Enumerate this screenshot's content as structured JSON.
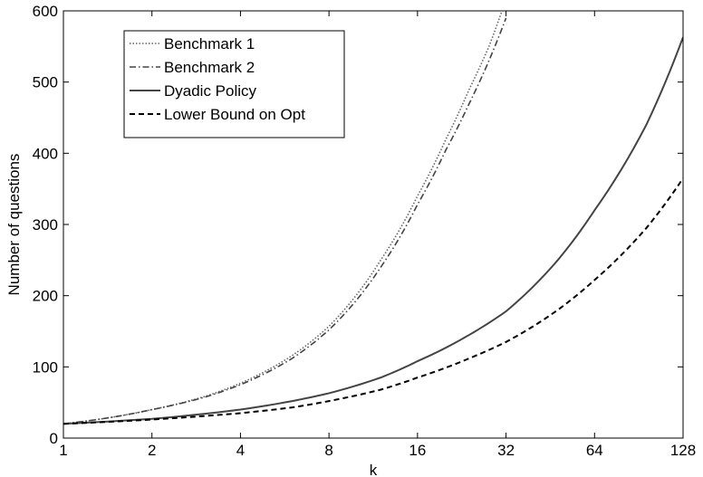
{
  "chart_data": {
    "type": "line",
    "title": "",
    "xlabel": "k",
    "ylabel": "Number of questions",
    "xscale": "log2",
    "xlim": [
      1,
      128
    ],
    "ylim": [
      0,
      600
    ],
    "xticks": [
      1,
      2,
      4,
      8,
      16,
      32,
      64,
      128
    ],
    "xtick_labels": [
      "1",
      "2",
      "4",
      "8",
      "16",
      "32",
      "64",
      "128"
    ],
    "yticks": [
      0,
      100,
      200,
      300,
      400,
      500,
      600
    ],
    "ytick_labels": [
      "0",
      "100",
      "200",
      "300",
      "400",
      "500",
      "600"
    ],
    "grid": false,
    "legend_position": "top-left",
    "series": [
      {
        "name": "Benchmark 1",
        "style": "dotted",
        "color": "#666666",
        "x": [
          1,
          1.5,
          2,
          3,
          4,
          6,
          8,
          12,
          16,
          20,
          24,
          28,
          31
        ],
        "y": [
          20,
          30,
          40,
          58,
          77,
          116,
          157,
          250,
          340,
          420,
          490,
          550,
          600
        ]
      },
      {
        "name": "Benchmark 2",
        "style": "dashdot",
        "color": "#444444",
        "x": [
          1,
          1.5,
          2,
          3,
          4,
          6,
          8,
          12,
          16,
          20,
          24,
          28,
          32
        ],
        "y": [
          20,
          30,
          40,
          57,
          75,
          112,
          152,
          240,
          328,
          405,
          470,
          530,
          590
        ]
      },
      {
        "name": "Dyadic Policy",
        "style": "solid",
        "color": "#444444",
        "x": [
          1,
          2,
          4,
          6,
          8,
          12,
          16,
          24,
          32,
          48,
          64,
          96,
          128
        ],
        "y": [
          20,
          27,
          40,
          52,
          63,
          85,
          108,
          145,
          178,
          250,
          320,
          440,
          563
        ]
      },
      {
        "name": "Lower Bound on Opt",
        "style": "dashed",
        "color": "#000000",
        "x": [
          1,
          2,
          4,
          6,
          8,
          12,
          16,
          24,
          32,
          48,
          64,
          96,
          128
        ],
        "y": [
          20,
          26,
          35,
          43,
          52,
          68,
          85,
          112,
          135,
          180,
          222,
          295,
          365
        ]
      }
    ]
  }
}
